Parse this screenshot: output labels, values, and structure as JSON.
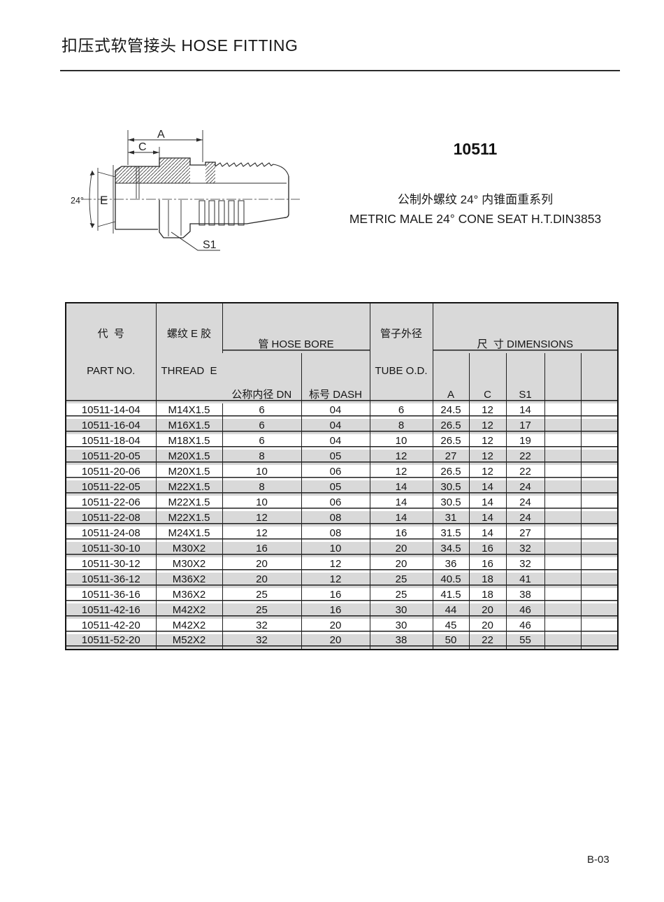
{
  "page": {
    "title": "扣压式软管接头 HOSE FITTING",
    "page_number": "B-03"
  },
  "product": {
    "model": "10511",
    "series_cn": "公制外螺纹 24° 内锥面重系列",
    "series_en": "METRIC MALE 24° CONE SEAT H.T.DIN3853"
  },
  "diagram": {
    "labels": {
      "dim_a": "A",
      "dim_c": "C",
      "dim_e": "E",
      "angle": "24°",
      "s1": "S1"
    }
  },
  "table": {
    "headers": {
      "part_no_cn": "代  号",
      "part_no_en": "PART NO.",
      "thread_cn": "螺纹 E 胶",
      "thread_en": "THREAD  E",
      "hose_bore_group": "管 HOSE BORE",
      "dn": "公称内径 DN",
      "dash": "标号 DASH",
      "tube_od_cn": "管子外径",
      "tube_od_en": "TUBE O.D.",
      "dimensions_group": "尺  寸 DIMENSIONS",
      "col_a": "A",
      "col_c": "C",
      "col_s1": "S1"
    },
    "rows": [
      [
        "10511-14-04",
        "M14X1.5",
        "6",
        "04",
        "6",
        "24.5",
        "12",
        "14"
      ],
      [
        "10511-16-04",
        "M16X1.5",
        "6",
        "04",
        "8",
        "26.5",
        "12",
        "17"
      ],
      [
        "10511-18-04",
        "M18X1.5",
        "6",
        "04",
        "10",
        "26.5",
        "12",
        "19"
      ],
      [
        "10511-20-05",
        "M20X1.5",
        "8",
        "05",
        "12",
        "27",
        "12",
        "22"
      ],
      [
        "10511-20-06",
        "M20X1.5",
        "10",
        "06",
        "12",
        "26.5",
        "12",
        "22"
      ],
      [
        "10511-22-05",
        "M22X1.5",
        "8",
        "05",
        "14",
        "30.5",
        "14",
        "24"
      ],
      [
        "10511-22-06",
        "M22X1.5",
        "10",
        "06",
        "14",
        "30.5",
        "14",
        "24"
      ],
      [
        "10511-22-08",
        "M22X1.5",
        "12",
        "08",
        "14",
        "31",
        "14",
        "24"
      ],
      [
        "10511-24-08",
        "M24X1.5",
        "12",
        "08",
        "16",
        "31.5",
        "14",
        "27"
      ],
      [
        "10511-30-10",
        "M30X2",
        "16",
        "10",
        "20",
        "34.5",
        "16",
        "32"
      ],
      [
        "10511-30-12",
        "M30X2",
        "20",
        "12",
        "20",
        "36",
        "16",
        "32"
      ],
      [
        "10511-36-12",
        "M36X2",
        "20",
        "12",
        "25",
        "40.5",
        "18",
        "41"
      ],
      [
        "10511-36-16",
        "M36X2",
        "25",
        "16",
        "25",
        "41.5",
        "18",
        "38"
      ],
      [
        "10511-42-16",
        "M42X2",
        "25",
        "16",
        "30",
        "44",
        "20",
        "46"
      ],
      [
        "10511-42-20",
        "M42X2",
        "32",
        "20",
        "30",
        "45",
        "20",
        "46"
      ],
      [
        "10511-52-20",
        "M52X2",
        "32",
        "20",
        "38",
        "50",
        "22",
        "55"
      ]
    ]
  },
  "colors": {
    "row_shade": "#d9d9d9",
    "border": "#1f1f1f",
    "text": "#1a1a1a"
  }
}
